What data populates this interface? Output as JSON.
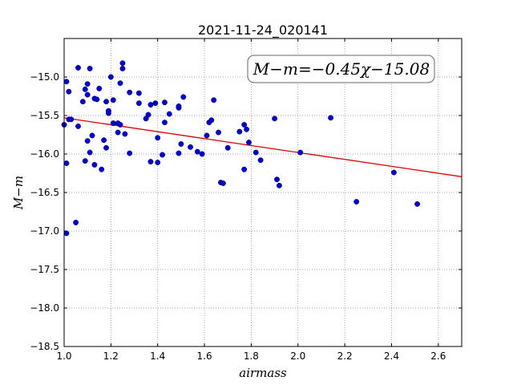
{
  "chart_data": {
    "type": "scatter",
    "title": "2021-11-24_020141",
    "xlabel": "airmass",
    "ylabel": "M−m",
    "xlim": [
      1.0,
      2.7
    ],
    "ylim": [
      -18.5,
      -14.5
    ],
    "y_inverted": true,
    "grid": true,
    "x_ticks": [
      "1.0",
      "1.2",
      "1.4",
      "1.6",
      "1.8",
      "2.0",
      "2.2",
      "2.4",
      "2.6"
    ],
    "x_tick_values": [
      1.0,
      1.2,
      1.4,
      1.6,
      1.8,
      2.0,
      2.2,
      2.4,
      2.6
    ],
    "y_ticks": [
      "−15.0",
      "−15.5",
      "−16.0",
      "−16.5",
      "−17.0",
      "−17.5",
      "−18.0",
      "−18.5"
    ],
    "y_tick_values": [
      -15.0,
      -15.5,
      -16.0,
      -16.5,
      -17.0,
      -17.5,
      -18.0,
      -18.5
    ],
    "annotation": "M−m=−0.45χ−15.08",
    "fit": {
      "slope": -0.45,
      "intercept": -15.08,
      "color": "#dd0000"
    },
    "point_color": "#0000cc",
    "points": [
      [
        1.0,
        -15.62
      ],
      [
        1.01,
        -17.03
      ],
      [
        1.01,
        -16.12
      ],
      [
        1.01,
        -15.06
      ],
      [
        1.02,
        -15.19
      ],
      [
        1.02,
        -15.55
      ],
      [
        1.03,
        -15.55
      ],
      [
        1.05,
        -16.89
      ],
      [
        1.06,
        -14.88
      ],
      [
        1.06,
        -15.64
      ],
      [
        1.08,
        -15.32
      ],
      [
        1.09,
        -16.09
      ],
      [
        1.09,
        -15.16
      ],
      [
        1.1,
        -15.23
      ],
      [
        1.1,
        -15.83
      ],
      [
        1.1,
        -15.09
      ],
      [
        1.11,
        -14.89
      ],
      [
        1.11,
        -15.98
      ],
      [
        1.12,
        -15.76
      ],
      [
        1.13,
        -16.14
      ],
      [
        1.13,
        -15.28
      ],
      [
        1.14,
        -15.29
      ],
      [
        1.15,
        -15.15
      ],
      [
        1.16,
        -16.2
      ],
      [
        1.17,
        -15.82
      ],
      [
        1.18,
        -15.92
      ],
      [
        1.18,
        -15.32
      ],
      [
        1.19,
        -15.44
      ],
      [
        1.19,
        -15.47
      ],
      [
        1.2,
        -15.0
      ],
      [
        1.21,
        -15.6
      ],
      [
        1.21,
        -15.3
      ],
      [
        1.23,
        -15.72
      ],
      [
        1.23,
        -15.6
      ],
      [
        1.24,
        -15.08
      ],
      [
        1.24,
        -15.62
      ],
      [
        1.25,
        -14.82
      ],
      [
        1.25,
        -14.89
      ],
      [
        1.26,
        -15.74
      ],
      [
        1.28,
        -15.2
      ],
      [
        1.28,
        -15.99
      ],
      [
        1.32,
        -15.21
      ],
      [
        1.32,
        -15.34
      ],
      [
        1.35,
        -15.54
      ],
      [
        1.36,
        -15.49
      ],
      [
        1.37,
        -15.36
      ],
      [
        1.37,
        -16.1
      ],
      [
        1.39,
        -15.34
      ],
      [
        1.4,
        -15.79
      ],
      [
        1.4,
        -16.11
      ],
      [
        1.42,
        -16.01
      ],
      [
        1.43,
        -15.33
      ],
      [
        1.43,
        -15.59
      ],
      [
        1.45,
        -15.48
      ],
      [
        1.49,
        -15.99
      ],
      [
        1.49,
        -15.4
      ],
      [
        1.49,
        -15.38
      ],
      [
        1.5,
        -15.87
      ],
      [
        1.51,
        -15.26
      ],
      [
        1.54,
        -15.91
      ],
      [
        1.57,
        -15.97
      ],
      [
        1.59,
        -16.0
      ],
      [
        1.61,
        -15.76
      ],
      [
        1.62,
        -15.59
      ],
      [
        1.63,
        -15.56
      ],
      [
        1.64,
        -15.3
      ],
      [
        1.66,
        -15.72
      ],
      [
        1.67,
        -16.37
      ],
      [
        1.68,
        -16.38
      ],
      [
        1.7,
        -15.92
      ],
      [
        1.75,
        -15.71
      ],
      [
        1.77,
        -15.62
      ],
      [
        1.77,
        -16.2
      ],
      [
        1.78,
        -15.68
      ],
      [
        1.79,
        -15.85
      ],
      [
        1.82,
        -15.98
      ],
      [
        1.84,
        -16.08
      ],
      [
        1.9,
        -15.54
      ],
      [
        1.91,
        -16.33
      ],
      [
        1.92,
        -16.41
      ],
      [
        2.01,
        -15.98
      ],
      [
        2.14,
        -15.53
      ],
      [
        2.25,
        -16.62
      ],
      [
        2.41,
        -16.24
      ],
      [
        2.51,
        -16.65
      ]
    ]
  }
}
